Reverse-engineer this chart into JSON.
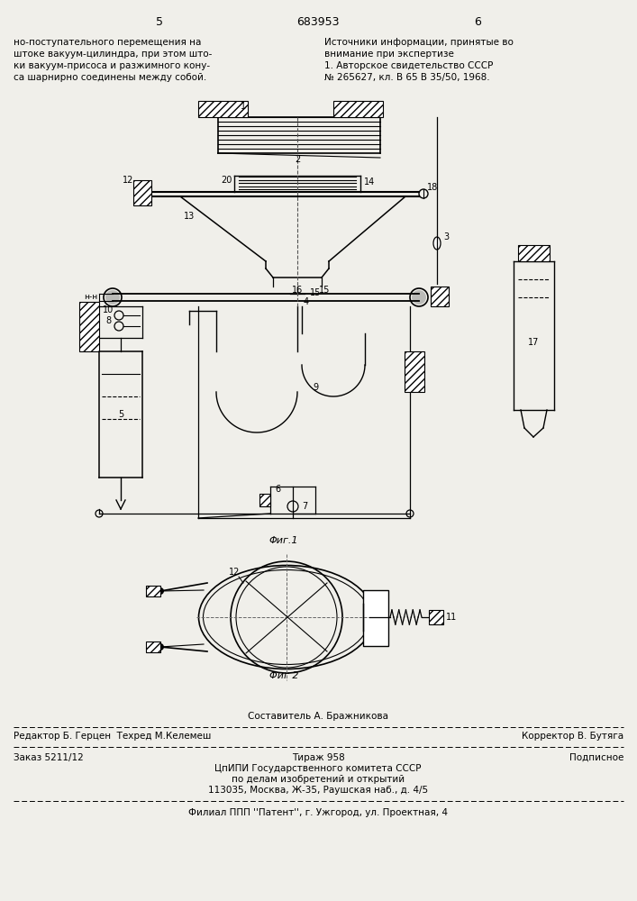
{
  "bg_color": "#f0efea",
  "page_width": 7.07,
  "page_height": 10.0,
  "header_left_col": "5",
  "header_center": "683953",
  "header_right_col": "6",
  "left_text_lines": [
    "но-поступательного перемещения на",
    "штоке вакуум-цилиндра, при этом што-",
    "ки вакуум-присоса и разжимного кону-",
    "са шарнирно соединены между собой."
  ],
  "right_text_lines": [
    "Источники информации, принятые во",
    "внимание при экспертизе",
    "1. Авторское свидетельство СССР",
    "№ 265627, кл. В 65 В 35/50, 1968."
  ],
  "fig1_caption": "Φиг.1",
  "fig2_caption": "Φиг 2",
  "footer_line1_center": "Составитель А. Бражникова",
  "footer_line2_left": "Редактор Б. Герцен  Техред М.Келемеш",
  "footer_line2_right": "Корректор В. Бутяга",
  "footer_line3_left": "Заказ 5211/12",
  "footer_line3_center": "Тираж 958",
  "footer_line3_right": "Подписное",
  "footer_line4": "ЦпИПИ Государственного комитета СССР",
  "footer_line5": "по делам изобретений и открытий",
  "footer_line6": "113035, Москва, Ж-35, Раушская наб., д. 4/5",
  "footer_line7": "Филиал ППП ''Патент'', г. Ужгород, ул. Проектная, 4"
}
